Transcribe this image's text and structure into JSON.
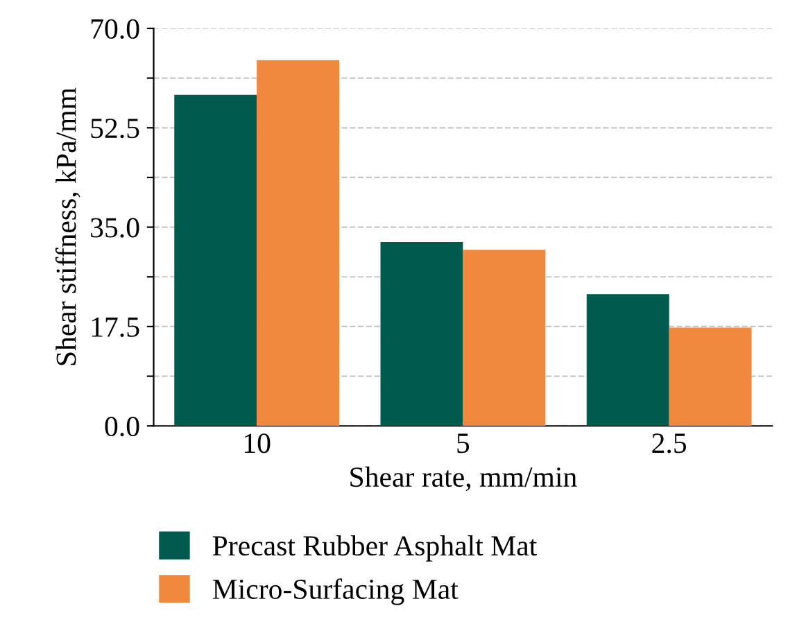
{
  "chart_data": {
    "type": "bar",
    "xlabel": "Shear rate, mm/min",
    "ylabel": "Shear stiffness, kPa/mm",
    "categories": [
      "10",
      "5",
      "2.5"
    ],
    "series": [
      {
        "name": "Precast Rubber Asphalt Mat",
        "color": "#005a4e",
        "values": [
          58.3,
          32.4,
          23.2
        ]
      },
      {
        "name": "Micro-Surfacing Mat",
        "color": "#f0883e",
        "values": [
          64.4,
          31.0,
          17.3
        ]
      }
    ],
    "ylim": [
      0,
      70
    ],
    "yticks": [
      {
        "value": 0,
        "label": "0.0"
      },
      {
        "value": 8.75,
        "label": null
      },
      17.5,
      {
        "value": 26.25,
        "label": null
      },
      {
        "value": 35,
        "label": "35.0"
      },
      {
        "value": 43.75,
        "label": null
      },
      52.5,
      {
        "value": 61.25,
        "label": null
      },
      {
        "value": 70,
        "label": "70.0"
      }
    ],
    "grid": "y",
    "legend": "bottom"
  }
}
